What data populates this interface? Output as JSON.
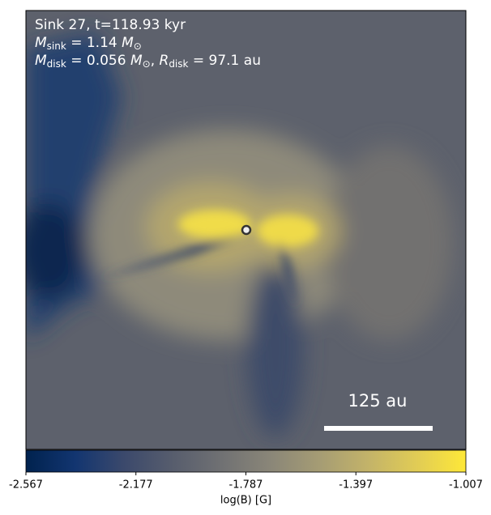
{
  "chart_data": {
    "type": "image",
    "annotations": {
      "title": "Sink 27, t=118.93 kyr",
      "sink": {
        "symbol": "M",
        "sub": "sink",
        "eq": " = 1.14 ",
        "unit": "M",
        "unit_sub": "⊙"
      },
      "disk": {
        "symbol": "M",
        "sub": "disk",
        "eq": " = 0.056 ",
        "unit": "M",
        "unit_sub": "⊙",
        "sep": ", ",
        "r_symbol": "R",
        "r_sub": "disk",
        "r_eq": " = 97.1 au"
      }
    },
    "scale_bar": "125 au",
    "colorbar": {
      "label": "log(B) [G]",
      "clim": [
        -2.567,
        -1.007
      ],
      "ticks": [
        -2.567,
        -2.177,
        -1.787,
        -1.397,
        -1.007
      ],
      "colors": [
        "#00224e",
        "#123570",
        "#3b496c",
        "#575d6d",
        "#707173",
        "#8a8678",
        "#a59c74",
        "#c3b369",
        "#e1cc55",
        "#fee838"
      ]
    }
  }
}
